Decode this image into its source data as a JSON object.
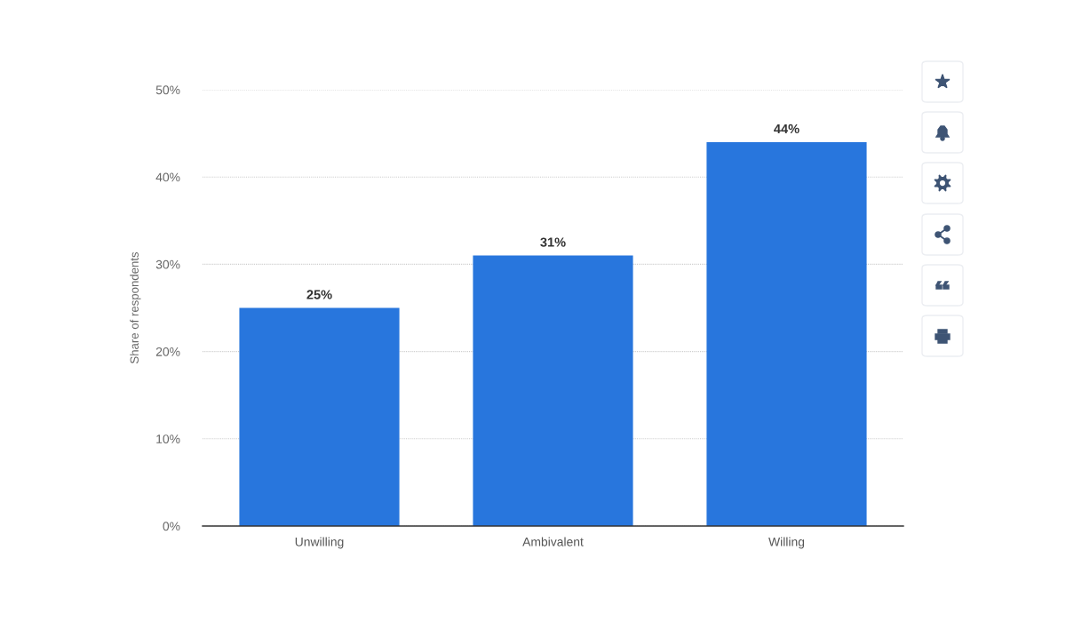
{
  "chart_data": {
    "type": "bar",
    "categories": [
      "Unwilling",
      "Ambivalent",
      "Willing"
    ],
    "values": [
      25,
      31,
      44
    ],
    "color": "#2876dd",
    "value_labels": [
      "25%",
      "31%",
      "44%"
    ],
    "ylabel": "Share of respondents",
    "ylim": [
      0,
      50
    ],
    "yticks": [
      {
        "value": 0,
        "label": "0%"
      },
      {
        "value": 10,
        "label": "10%"
      },
      {
        "value": 20,
        "label": "20%"
      },
      {
        "value": 30,
        "label": "30%"
      },
      {
        "value": 40,
        "label": "40%"
      },
      {
        "value": 50,
        "label": "50%"
      }
    ],
    "grid": "y"
  }
}
